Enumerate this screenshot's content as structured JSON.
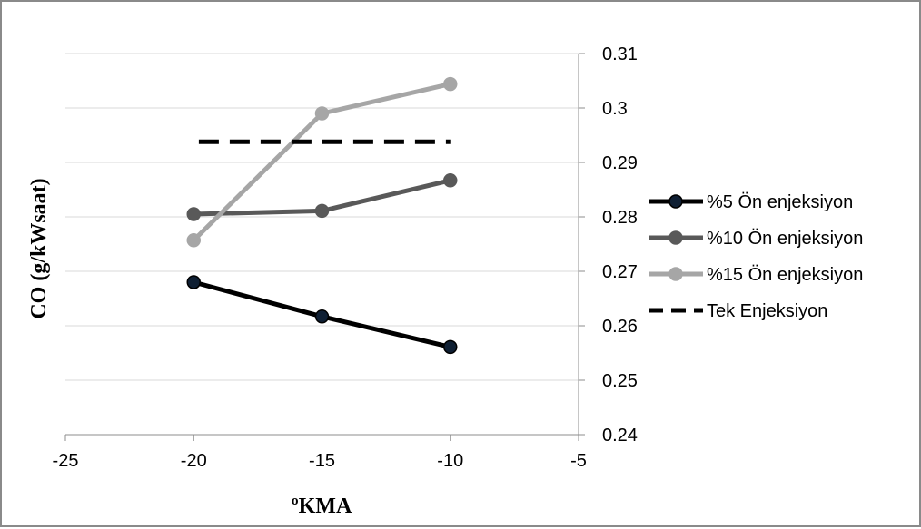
{
  "chart_data": {
    "type": "line",
    "xlabel": "ºKMA",
    "ylabel": "CO (g/kWsaat)",
    "xlim": [
      -25,
      -5
    ],
    "ylim": [
      0.24,
      0.31
    ],
    "x_ticks": [
      -25,
      -20,
      -15,
      -10,
      -5
    ],
    "x_tick_labels": [
      "-25",
      "-20",
      "-15",
      "-10",
      "-5"
    ],
    "y_ticks": [
      0.24,
      0.25,
      0.26,
      0.27,
      0.28,
      0.29,
      0.3,
      0.31
    ],
    "y_tick_labels": [
      "0.24",
      "0.25",
      "0.26",
      "0.27",
      "0.28",
      "0.29",
      "0.3",
      "0.31"
    ],
    "y_axis_side": "right",
    "grid": "horizontal",
    "legend_position": "right",
    "series": [
      {
        "name": "%5 Ön enjeksiyon",
        "x": [
          -20,
          -15,
          -10
        ],
        "y": [
          0.268,
          0.2617,
          0.2561
        ],
        "color": "#000000",
        "marker": "circle",
        "marker_fill": "#0f1f33",
        "dash": false
      },
      {
        "name": "%10 Ön enjeksiyon",
        "x": [
          -20,
          -15,
          -10
        ],
        "y": [
          0.2805,
          0.2811,
          0.2867
        ],
        "color": "#595959",
        "marker": "circle",
        "marker_fill": "#595959",
        "dash": false
      },
      {
        "name": "%15 Ön enjeksiyon",
        "x": [
          -20,
          -15,
          -10
        ],
        "y": [
          0.2757,
          0.299,
          0.3044
        ],
        "color": "#a6a6a6",
        "marker": "circle",
        "marker_fill": "#a6a6a6",
        "dash": false
      },
      {
        "name": "Tek Enjeksiyon",
        "x": [
          -19.8,
          -10
        ],
        "y": [
          0.2938,
          0.2938
        ],
        "color": "#000000",
        "marker": "none",
        "marker_fill": "#000000",
        "dash": true
      }
    ]
  }
}
